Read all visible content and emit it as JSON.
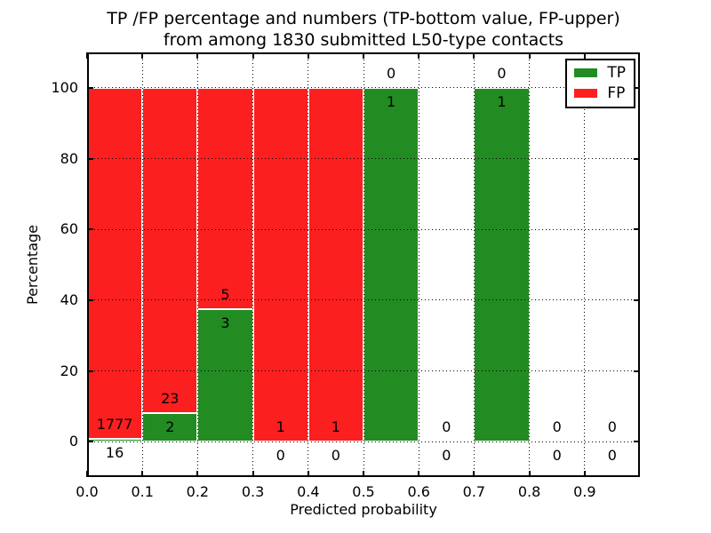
{
  "title": {
    "line1": "TP /FP percentage and numbers (TP-bottom value, FP-upper)",
    "line2": "from among 1830 submitted L50-type contacts"
  },
  "axes": {
    "xlabel": "Predicted probability",
    "ylabel": "Percentage"
  },
  "legend": {
    "position": "upper-right",
    "items": [
      {
        "id": "tp",
        "label": "TP",
        "color": "#228c22"
      },
      {
        "id": "fp",
        "label": "FP",
        "color": "#fc1f1f"
      }
    ]
  },
  "chart_data": {
    "type": "bar",
    "stacked": true,
    "title": "TP /FP percentage and numbers (TP-bottom value, FP-upper) from among 1830 submitted L50-type contacts",
    "xlabel": "Predicted probability",
    "ylabel": "Percentage",
    "total_submitted_contacts": 1830,
    "xlim": [
      0.0,
      1.0
    ],
    "ylim": [
      -10,
      110
    ],
    "grid": "dotted-both-axes-above-bars",
    "legend_position": "upper-right",
    "colors": {
      "tp": "#228c22",
      "fp": "#fc1f1f",
      "bar_edge": "#ffffff"
    },
    "bar_label_offset_pct": 4,
    "xticks": [
      {
        "label": "0.0",
        "value": 0.0
      },
      {
        "label": "0.1",
        "value": 0.1
      },
      {
        "label": "0.2",
        "value": 0.2
      },
      {
        "label": "0.3",
        "value": 0.3
      },
      {
        "label": "0.4",
        "value": 0.4
      },
      {
        "label": "0.5",
        "value": 0.5
      },
      {
        "label": "0.6",
        "value": 0.6
      },
      {
        "label": "0.7",
        "value": 0.7
      },
      {
        "label": "0.8",
        "value": 0.8
      },
      {
        "label": "0.9",
        "value": 0.9
      }
    ],
    "yticks": [
      {
        "label": "0",
        "value": 0
      },
      {
        "label": "20",
        "value": 20
      },
      {
        "label": "40",
        "value": 40
      },
      {
        "label": "60",
        "value": 60
      },
      {
        "label": "80",
        "value": 80
      },
      {
        "label": "100",
        "value": 100
      }
    ],
    "bins": [
      {
        "x_start": 0.0,
        "x_end": 0.1,
        "tp": 16,
        "fp": 1777,
        "tp_percent": 0.89,
        "fp_percent": 99.11
      },
      {
        "x_start": 0.1,
        "x_end": 0.2,
        "tp": 2,
        "fp": 23,
        "tp_percent": 8.0,
        "fp_percent": 92.0
      },
      {
        "x_start": 0.2,
        "x_end": 0.3,
        "tp": 3,
        "fp": 5,
        "tp_percent": 37.5,
        "fp_percent": 62.5
      },
      {
        "x_start": 0.3,
        "x_end": 0.4,
        "tp": 0,
        "fp": 1,
        "tp_percent": 0.0,
        "fp_percent": 100.0
      },
      {
        "x_start": 0.4,
        "x_end": 0.5,
        "tp": 0,
        "fp": 1,
        "tp_percent": 0.0,
        "fp_percent": 100.0
      },
      {
        "x_start": 0.5,
        "x_end": 0.6,
        "tp": 1,
        "fp": 0,
        "tp_percent": 100.0,
        "fp_percent": 0.0
      },
      {
        "x_start": 0.6,
        "x_end": 0.7,
        "tp": 0,
        "fp": 0,
        "tp_percent": null,
        "fp_percent": null
      },
      {
        "x_start": 0.7,
        "x_end": 0.8,
        "tp": 1,
        "fp": 0,
        "tp_percent": 100.0,
        "fp_percent": 0.0
      },
      {
        "x_start": 0.8,
        "x_end": 0.9,
        "tp": 0,
        "fp": 0,
        "tp_percent": null,
        "fp_percent": null
      },
      {
        "x_start": 0.9,
        "x_end": 1.0,
        "tp": 0,
        "fp": 0,
        "tp_percent": null,
        "fp_percent": null
      }
    ]
  }
}
